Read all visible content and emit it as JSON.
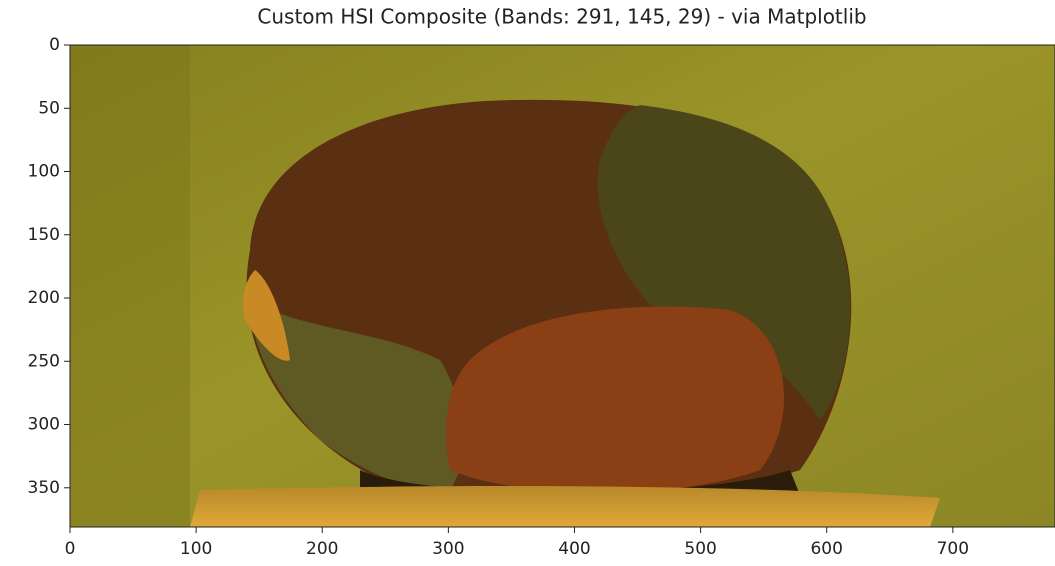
{
  "chart_data": {
    "type": "image",
    "title": "Custom HSI Composite (Bands: 291, 145, 29) - via Matplotlib",
    "xlim": [
      0,
      781
    ],
    "xticks": [
      0,
      100,
      200,
      300,
      400,
      500,
      600,
      700
    ],
    "ylim": [
      0,
      381
    ],
    "yticks": [
      0,
      50,
      100,
      150,
      200,
      250,
      300,
      350
    ],
    "y_inverted": true
  }
}
